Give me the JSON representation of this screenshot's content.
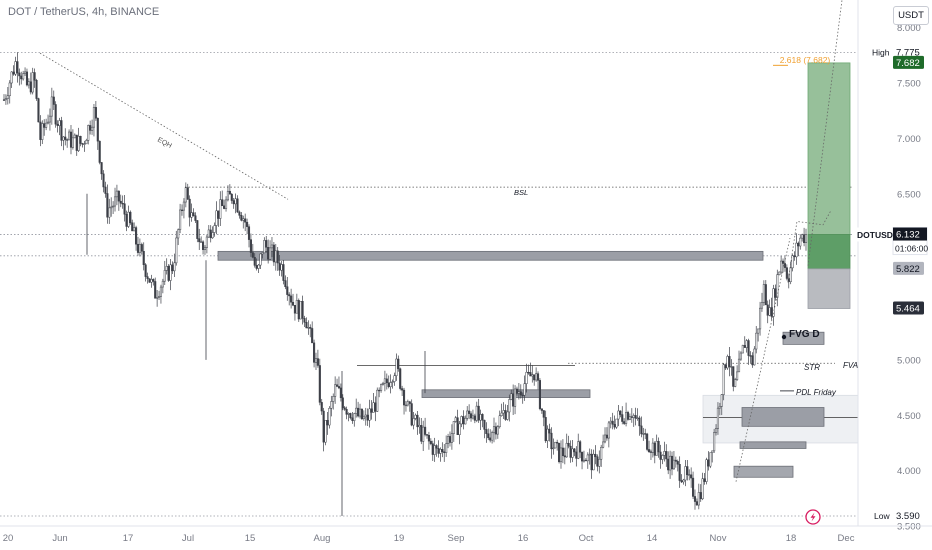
{
  "header": {
    "title": "DOT / TetherUS, 4h, BINANCE",
    "currency": "USDT"
  },
  "chart_data": {
    "type": "candlestick",
    "ylim": [
      3.5,
      8.25
    ],
    "y_ticks": [
      {
        "v": 8.0,
        "label": "8.000"
      },
      {
        "v": 7.5,
        "label": "7.500"
      },
      {
        "v": 7.0,
        "label": "7.000"
      },
      {
        "v": 6.5,
        "label": "6.500"
      },
      {
        "v": 6.0,
        "label": "6.000"
      },
      {
        "v": 5.5,
        "label": "5.500"
      },
      {
        "v": 5.0,
        "label": "5.000"
      },
      {
        "v": 4.5,
        "label": "4.500"
      },
      {
        "v": 4.0,
        "label": "4.000"
      },
      {
        "v": 3.5,
        "label": "3.500"
      }
    ],
    "x_ticks": [
      "20",
      "Jun",
      "17",
      "Jul",
      "15",
      "Aug",
      "19",
      "Sep",
      "16",
      "Oct",
      "14",
      "Nov",
      "18",
      "Dec"
    ],
    "price_path": [
      [
        0,
        7.35
      ],
      [
        2,
        7.7
      ],
      [
        4,
        7.45
      ],
      [
        5,
        7.55
      ],
      [
        6,
        7.0
      ],
      [
        8,
        7.3
      ],
      [
        10,
        7.0
      ],
      [
        13,
        6.95
      ],
      [
        15,
        7.25
      ],
      [
        17,
        6.35
      ],
      [
        19,
        6.45
      ],
      [
        21,
        6.2
      ],
      [
        23,
        5.9
      ],
      [
        25,
        5.6
      ],
      [
        28,
        5.85
      ],
      [
        30,
        6.55
      ],
      [
        31,
        6.3
      ],
      [
        33,
        6.0
      ],
      [
        35,
        6.3
      ],
      [
        38,
        6.5
      ],
      [
        40,
        6.25
      ],
      [
        42,
        5.75
      ],
      [
        43,
        6.05
      ],
      [
        46,
        5.85
      ],
      [
        48,
        5.5
      ],
      [
        50,
        5.4
      ],
      [
        52,
        4.9
      ],
      [
        53,
        4.3
      ],
      [
        55,
        4.75
      ],
      [
        57,
        4.55
      ],
      [
        60,
        4.45
      ],
      [
        63,
        4.75
      ],
      [
        65,
        4.95
      ],
      [
        67,
        4.55
      ],
      [
        69,
        4.35
      ],
      [
        72,
        4.15
      ],
      [
        75,
        4.4
      ],
      [
        78,
        4.55
      ],
      [
        80,
        4.3
      ],
      [
        82,
        4.45
      ],
      [
        85,
        4.7
      ],
      [
        88,
        4.9
      ],
      [
        90,
        4.3
      ],
      [
        92,
        4.15
      ],
      [
        95,
        4.2
      ],
      [
        98,
        4.05
      ],
      [
        101,
        4.45
      ],
      [
        104,
        4.55
      ],
      [
        106,
        4.3
      ],
      [
        109,
        4.15
      ],
      [
        111,
        4.05
      ],
      [
        113,
        3.95
      ],
      [
        115,
        3.75
      ],
      [
        116,
        3.9
      ],
      [
        118,
        4.4
      ],
      [
        120,
        5.1
      ],
      [
        121,
        4.7
      ],
      [
        123,
        5.2
      ],
      [
        124,
        4.95
      ],
      [
        126,
        5.65
      ],
      [
        127,
        5.4
      ],
      [
        129,
        5.95
      ],
      [
        130,
        5.75
      ],
      [
        132,
        6.1
      ],
      [
        133,
        6.13
      ]
    ],
    "levels": {
      "high": "7.775",
      "low": "3.590",
      "current": "6.132",
      "level_a": "5.822",
      "level_b": "5.464",
      "target": "7.682",
      "countdown": "01:06:00"
    },
    "annotations": {
      "fib": "2.618 (7.682)",
      "bsl": "BSL",
      "eqh": "EQH",
      "fvg": "FVG D",
      "str": "STR",
      "fva": "FVA",
      "pdl": "PDL Friday",
      "high_label": "High",
      "low_label": "Low",
      "symbol": "DOTUSDT"
    }
  }
}
